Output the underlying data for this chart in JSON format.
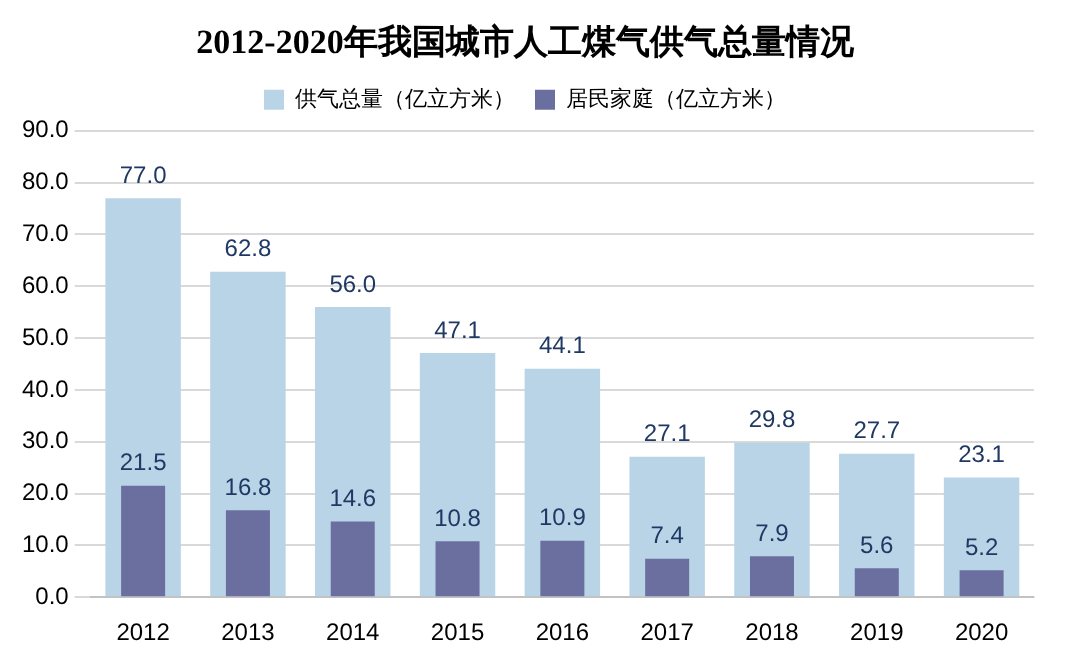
{
  "chart_data": {
    "type": "bar",
    "title": "2012-2020年我国城市人工煤气供气总量情况",
    "categories": [
      "2012",
      "2013",
      "2014",
      "2015",
      "2016",
      "2017",
      "2018",
      "2019",
      "2020"
    ],
    "series": [
      {
        "name": "供气总量（亿立方米）",
        "color": "#b9d4e7",
        "values": [
          77.0,
          62.8,
          56.0,
          47.1,
          44.1,
          27.1,
          29.8,
          27.7,
          23.1
        ],
        "value_labels": [
          "77.0",
          "62.8",
          "56.0",
          "47.1",
          "44.1",
          "27.1",
          "29.8",
          "27.7",
          "23.1"
        ]
      },
      {
        "name": "居民家庭（亿立方米）",
        "color": "#6b6f9f",
        "values": [
          21.5,
          16.8,
          14.6,
          10.8,
          10.9,
          7.4,
          7.9,
          5.6,
          5.2
        ],
        "value_labels": [
          "21.5",
          "16.8",
          "14.6",
          "10.8",
          "10.9",
          "7.4",
          "7.9",
          "5.6",
          "5.2"
        ]
      }
    ],
    "ylim": [
      0,
      90
    ],
    "yticks": [
      {
        "value": 0,
        "label": "0.0"
      },
      {
        "value": 10,
        "label": "10.0"
      },
      {
        "value": 20,
        "label": "20.0"
      },
      {
        "value": 30,
        "label": "30.0"
      },
      {
        "value": 40,
        "label": "40.0"
      },
      {
        "value": 50,
        "label": "50.0"
      },
      {
        "value": 60,
        "label": "60.0"
      },
      {
        "value": 70,
        "label": "70.0"
      },
      {
        "value": 80,
        "label": "80.0"
      },
      {
        "value": 90,
        "label": "90.0"
      }
    ],
    "grid": "y",
    "legend": "top"
  }
}
